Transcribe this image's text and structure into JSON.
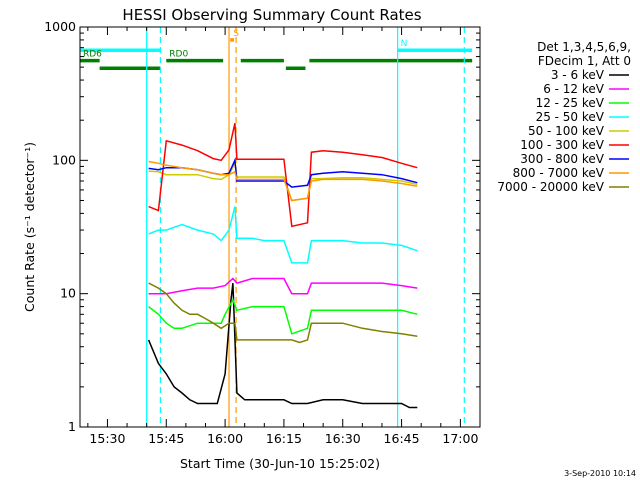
{
  "chart_data": {
    "type": "line",
    "title": "HESSI Observing Summary Count Rates",
    "xlabel": "Start Time (30-Jun-10 15:25:02)",
    "ylabel": "Count Rate (s⁻¹ detector⁻¹)",
    "y_scale": "log",
    "ylim": [
      1,
      1000
    ],
    "xlim_minutes": [
      -2,
      100
    ],
    "x_ticks": [
      {
        "min": 5,
        "label": "15:30"
      },
      {
        "min": 20,
        "label": "15:45"
      },
      {
        "min": 35,
        "label": "16:00"
      },
      {
        "min": 50,
        "label": "16:15"
      },
      {
        "min": 65,
        "label": "16:30"
      },
      {
        "min": 80,
        "label": "16:45"
      },
      {
        "min": 95,
        "label": "17:00"
      }
    ],
    "y_ticks": [
      {
        "value": 1,
        "label": "1"
      },
      {
        "value": 10,
        "label": "10"
      },
      {
        "value": 100,
        "label": "100"
      },
      {
        "value": 1000,
        "label": "1000"
      }
    ],
    "legend_header": [
      "Det 1,3,4,5,6,9,",
      "FDecim 1, Att 0"
    ],
    "legend_position": "right",
    "series": [
      {
        "name": "3 - 6 keV",
        "color": "#000000",
        "points": [
          [
            15.5,
            4.5
          ],
          [
            18,
            3
          ],
          [
            20,
            2.5
          ],
          [
            22,
            2
          ],
          [
            24,
            1.8
          ],
          [
            26,
            1.6
          ],
          [
            28,
            1.5
          ],
          [
            30,
            1.5
          ],
          [
            33,
            1.5
          ],
          [
            35,
            2.5
          ],
          [
            36.5,
            9
          ],
          [
            37,
            12
          ],
          [
            38,
            1.8
          ],
          [
            40,
            1.6
          ],
          [
            45,
            1.6
          ],
          [
            50,
            1.6
          ],
          [
            52,
            1.5
          ],
          [
            56,
            1.5
          ],
          [
            60,
            1.6
          ],
          [
            65,
            1.6
          ],
          [
            70,
            1.5
          ],
          [
            75,
            1.5
          ],
          [
            80,
            1.5
          ],
          [
            82,
            1.4
          ],
          [
            84,
            1.4
          ]
        ]
      },
      {
        "name": "6 - 12 keV",
        "color": "#ff00ff",
        "points": [
          [
            15.5,
            10
          ],
          [
            18,
            10
          ],
          [
            20,
            10
          ],
          [
            24,
            10.5
          ],
          [
            28,
            11
          ],
          [
            32,
            11
          ],
          [
            35,
            11.5
          ],
          [
            37,
            13
          ],
          [
            38,
            12
          ],
          [
            42,
            13
          ],
          [
            45,
            13
          ],
          [
            48,
            13
          ],
          [
            50,
            13
          ],
          [
            52,
            10
          ],
          [
            56,
            10
          ],
          [
            57,
            12
          ],
          [
            60,
            12
          ],
          [
            65,
            12
          ],
          [
            70,
            12
          ],
          [
            75,
            12
          ],
          [
            80,
            11.5
          ],
          [
            84,
            11
          ]
        ]
      },
      {
        "name": "12 - 25 keV",
        "color": "#00ff00",
        "points": [
          [
            15.5,
            8
          ],
          [
            18,
            7
          ],
          [
            20,
            6
          ],
          [
            22,
            5.5
          ],
          [
            24,
            5.5
          ],
          [
            28,
            6
          ],
          [
            32,
            6
          ],
          [
            34,
            6
          ],
          [
            35,
            7
          ],
          [
            37,
            9
          ],
          [
            38,
            7.5
          ],
          [
            42,
            8
          ],
          [
            45,
            8
          ],
          [
            50,
            8
          ],
          [
            52,
            5
          ],
          [
            56,
            5.5
          ],
          [
            57,
            7.5
          ],
          [
            60,
            7.5
          ],
          [
            65,
            7.5
          ],
          [
            70,
            7.5
          ],
          [
            75,
            7.5
          ],
          [
            80,
            7.5
          ],
          [
            84,
            7
          ]
        ]
      },
      {
        "name": "25 - 50 keV",
        "color": "#00ffff",
        "points": [
          [
            15.5,
            28
          ],
          [
            18,
            30
          ],
          [
            20,
            30
          ],
          [
            24,
            33
          ],
          [
            28,
            30
          ],
          [
            32,
            28
          ],
          [
            34,
            25
          ],
          [
            36,
            30
          ],
          [
            37.5,
            45
          ],
          [
            38,
            26
          ],
          [
            42,
            26
          ],
          [
            45,
            25
          ],
          [
            50,
            25
          ],
          [
            52,
            17
          ],
          [
            56,
            17
          ],
          [
            57,
            25
          ],
          [
            60,
            25
          ],
          [
            65,
            25
          ],
          [
            70,
            24
          ],
          [
            75,
            24
          ],
          [
            80,
            23
          ],
          [
            84,
            21
          ]
        ]
      },
      {
        "name": "50 - 100 keV",
        "color": "#cccc00",
        "points": [
          [
            15.5,
            83
          ],
          [
            18,
            82
          ],
          [
            20,
            78
          ],
          [
            24,
            78
          ],
          [
            28,
            78
          ],
          [
            32,
            73
          ],
          [
            34,
            72
          ],
          [
            36,
            78
          ],
          [
            37.5,
            95
          ],
          [
            38,
            75
          ],
          [
            42,
            75
          ],
          [
            45,
            75
          ],
          [
            50,
            75
          ],
          [
            52,
            50
          ],
          [
            56,
            52
          ],
          [
            57,
            73
          ],
          [
            60,
            73
          ],
          [
            65,
            74
          ],
          [
            70,
            74
          ],
          [
            75,
            72
          ],
          [
            80,
            70
          ],
          [
            84,
            66
          ]
        ]
      },
      {
        "name": "100 - 300 keV",
        "color": "#ff0000",
        "points": [
          [
            15.5,
            45
          ],
          [
            18,
            42
          ],
          [
            20,
            140
          ],
          [
            24,
            130
          ],
          [
            28,
            118
          ],
          [
            32,
            103
          ],
          [
            34,
            100
          ],
          [
            36,
            120
          ],
          [
            37.5,
            190
          ],
          [
            38,
            102
          ],
          [
            42,
            102
          ],
          [
            45,
            102
          ],
          [
            50,
            102
          ],
          [
            52,
            32
          ],
          [
            56,
            34
          ],
          [
            57,
            115
          ],
          [
            60,
            118
          ],
          [
            65,
            115
          ],
          [
            70,
            110
          ],
          [
            75,
            105
          ],
          [
            80,
            95
          ],
          [
            84,
            88
          ]
        ]
      },
      {
        "name": "300 - 800 keV",
        "color": "#0000ff",
        "points": [
          [
            15.5,
            87
          ],
          [
            18,
            85
          ],
          [
            20,
            88
          ],
          [
            24,
            88
          ],
          [
            28,
            85
          ],
          [
            32,
            80
          ],
          [
            34,
            78
          ],
          [
            36,
            80
          ],
          [
            37.5,
            100
          ],
          [
            38,
            70
          ],
          [
            42,
            70
          ],
          [
            45,
            70
          ],
          [
            50,
            70
          ],
          [
            52,
            63
          ],
          [
            56,
            65
          ],
          [
            57,
            78
          ],
          [
            60,
            80
          ],
          [
            65,
            82
          ],
          [
            70,
            80
          ],
          [
            75,
            78
          ],
          [
            80,
            73
          ],
          [
            84,
            68
          ]
        ]
      },
      {
        "name": "800 - 7000 keV",
        "color": "#ff9900",
        "points": [
          [
            15.5,
            98
          ],
          [
            18,
            95
          ],
          [
            20,
            92
          ],
          [
            24,
            88
          ],
          [
            28,
            85
          ],
          [
            32,
            80
          ],
          [
            34,
            78
          ],
          [
            36,
            78
          ],
          [
            37.5,
            82
          ],
          [
            38,
            72
          ],
          [
            42,
            72
          ],
          [
            45,
            72
          ],
          [
            50,
            72
          ],
          [
            52,
            50
          ],
          [
            56,
            52
          ],
          [
            57,
            70
          ],
          [
            60,
            72
          ],
          [
            65,
            72
          ],
          [
            70,
            72
          ],
          [
            75,
            70
          ],
          [
            80,
            67
          ],
          [
            84,
            64
          ]
        ]
      },
      {
        "name": "7000 - 20000 keV",
        "color": "#808000",
        "points": [
          [
            15.5,
            12
          ],
          [
            18,
            11
          ],
          [
            20,
            10
          ],
          [
            22,
            8.5
          ],
          [
            24,
            7.5
          ],
          [
            26,
            7
          ],
          [
            28,
            7
          ],
          [
            30,
            6.5
          ],
          [
            32,
            6
          ],
          [
            34,
            5.5
          ],
          [
            36,
            6
          ],
          [
            37.5,
            6
          ],
          [
            38,
            4.5
          ],
          [
            42,
            4.5
          ],
          [
            45,
            4.5
          ],
          [
            50,
            4.5
          ],
          [
            52,
            4.5
          ],
          [
            54,
            4.3
          ],
          [
            56,
            4.5
          ],
          [
            57,
            6
          ],
          [
            60,
            6
          ],
          [
            65,
            6
          ],
          [
            70,
            5.5
          ],
          [
            75,
            5.2
          ],
          [
            80,
            5
          ],
          [
            84,
            4.8
          ]
        ]
      }
    ],
    "vertical_markers": [
      {
        "min": 15.0,
        "color": "#00ffff",
        "style": "solid"
      },
      {
        "min": 18.5,
        "color": "#00ffff",
        "style": "dashed"
      },
      {
        "min": 36.0,
        "color": "#ff9900",
        "style": "solid"
      },
      {
        "min": 37.8,
        "color": "#ff9900",
        "style": "dashed"
      },
      {
        "min": 79.0,
        "color": "#00ffff",
        "style": "solid"
      },
      {
        "min": 96.0,
        "color": "#00ffff",
        "style": "dashed"
      }
    ],
    "bars": [
      {
        "label": "",
        "color": "#00ffff",
        "from": -2,
        "to": 18.5,
        "value": 670
      },
      {
        "label": "N",
        "color": "#00ffff",
        "from": 79,
        "to": 98,
        "value": 670
      },
      {
        "label": "S",
        "color": "#ff9900",
        "from": 36.3,
        "to": 37.3,
        "value": 800
      },
      {
        "label": "RD0",
        "color": "#008000",
        "from": 20,
        "to": 34.5,
        "value": 560
      },
      {
        "label": "",
        "color": "#008000",
        "from": 39,
        "to": 50,
        "value": 560
      },
      {
        "label": "",
        "color": "#008000",
        "from": 50.5,
        "to": 55.5,
        "value": 490
      },
      {
        "label": "",
        "color": "#008000",
        "from": 56.5,
        "to": 98,
        "value": 560
      },
      {
        "label": "RD6",
        "color": "#008000",
        "from": -2,
        "to": 3,
        "value": 560
      },
      {
        "label": "",
        "color": "#008000",
        "from": 3,
        "to": 18.5,
        "value": 490
      }
    ]
  },
  "footer_date": "3-Sep-2010 10:14"
}
